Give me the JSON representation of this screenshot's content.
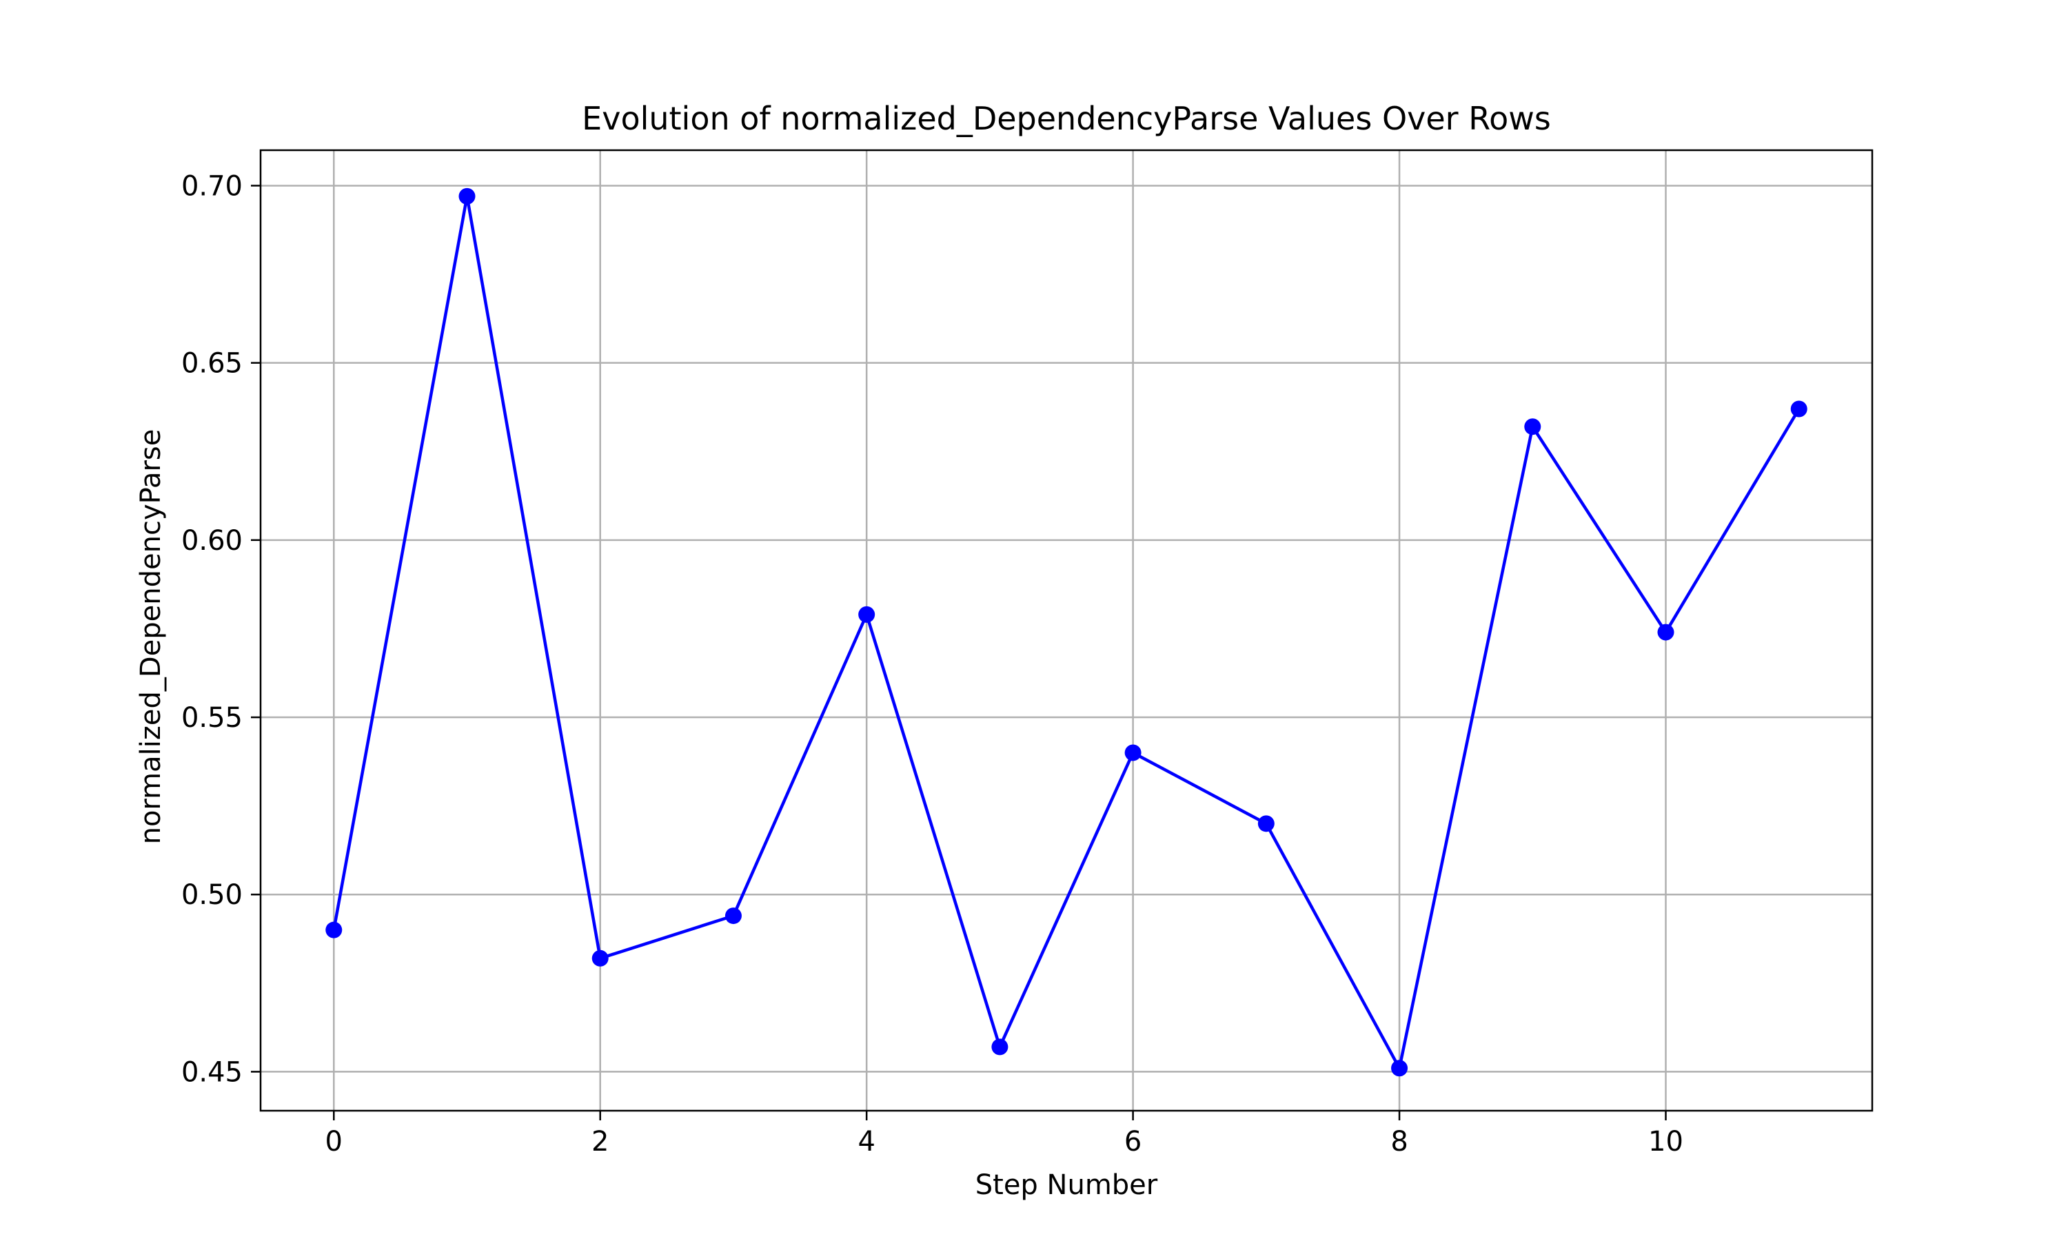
{
  "chart_data": {
    "type": "line",
    "title": "Evolution of normalized_DependencyParse Values Over Rows",
    "xlabel": "Step Number",
    "ylabel": "normalized_DependencyParse",
    "x": [
      0,
      1,
      2,
      3,
      4,
      5,
      6,
      7,
      8,
      9,
      10,
      11
    ],
    "series": [
      {
        "values": [
          0.49,
          0.697,
          0.482,
          0.494,
          0.579,
          0.457,
          0.54,
          0.52,
          0.451,
          0.632,
          0.574,
          0.637
        ],
        "color": "#0000ff",
        "marker": "circle"
      }
    ],
    "xlim": [
      -0.55,
      11.55
    ],
    "ylim": [
      0.439,
      0.71
    ],
    "xticks": [
      0,
      2,
      4,
      6,
      8,
      10
    ],
    "xtick_labels": [
      "0",
      "2",
      "4",
      "6",
      "8",
      "10"
    ],
    "yticks": [
      0.45,
      0.5,
      0.55,
      0.6,
      0.65,
      0.7
    ],
    "ytick_labels": [
      "0.45",
      "0.50",
      "0.55",
      "0.60",
      "0.65",
      "0.70"
    ],
    "grid": true,
    "legend": "none"
  }
}
